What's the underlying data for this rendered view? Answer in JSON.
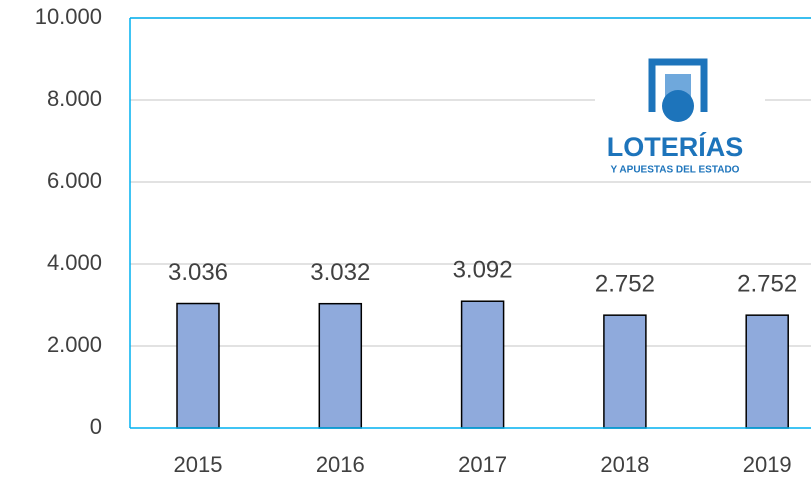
{
  "chart_data": {
    "type": "bar",
    "categories": [
      "2015",
      "2016",
      "2017",
      "2018",
      "2019"
    ],
    "values": [
      3036,
      3032,
      3092,
      2752,
      2752
    ],
    "value_labels": [
      "3.036",
      "3.032",
      "3.092",
      "2.752",
      "2.752"
    ],
    "color": "#8faadc",
    "ylim": [
      0,
      10000
    ],
    "yticks": [
      0,
      {
        "value": 2000,
        "label": "2.000"
      },
      {
        "value": 4000,
        "label": "4.000"
      },
      {
        "value": 6000,
        "label": "6.000"
      },
      {
        "value": 8000,
        "label": "8.000"
      },
      {
        "value": 10000,
        "label": "10.000"
      }
    ],
    "grid": true,
    "logo_text": [
      "LOTERÍAS",
      "Y APUESTAS DEL ESTADO"
    ]
  }
}
